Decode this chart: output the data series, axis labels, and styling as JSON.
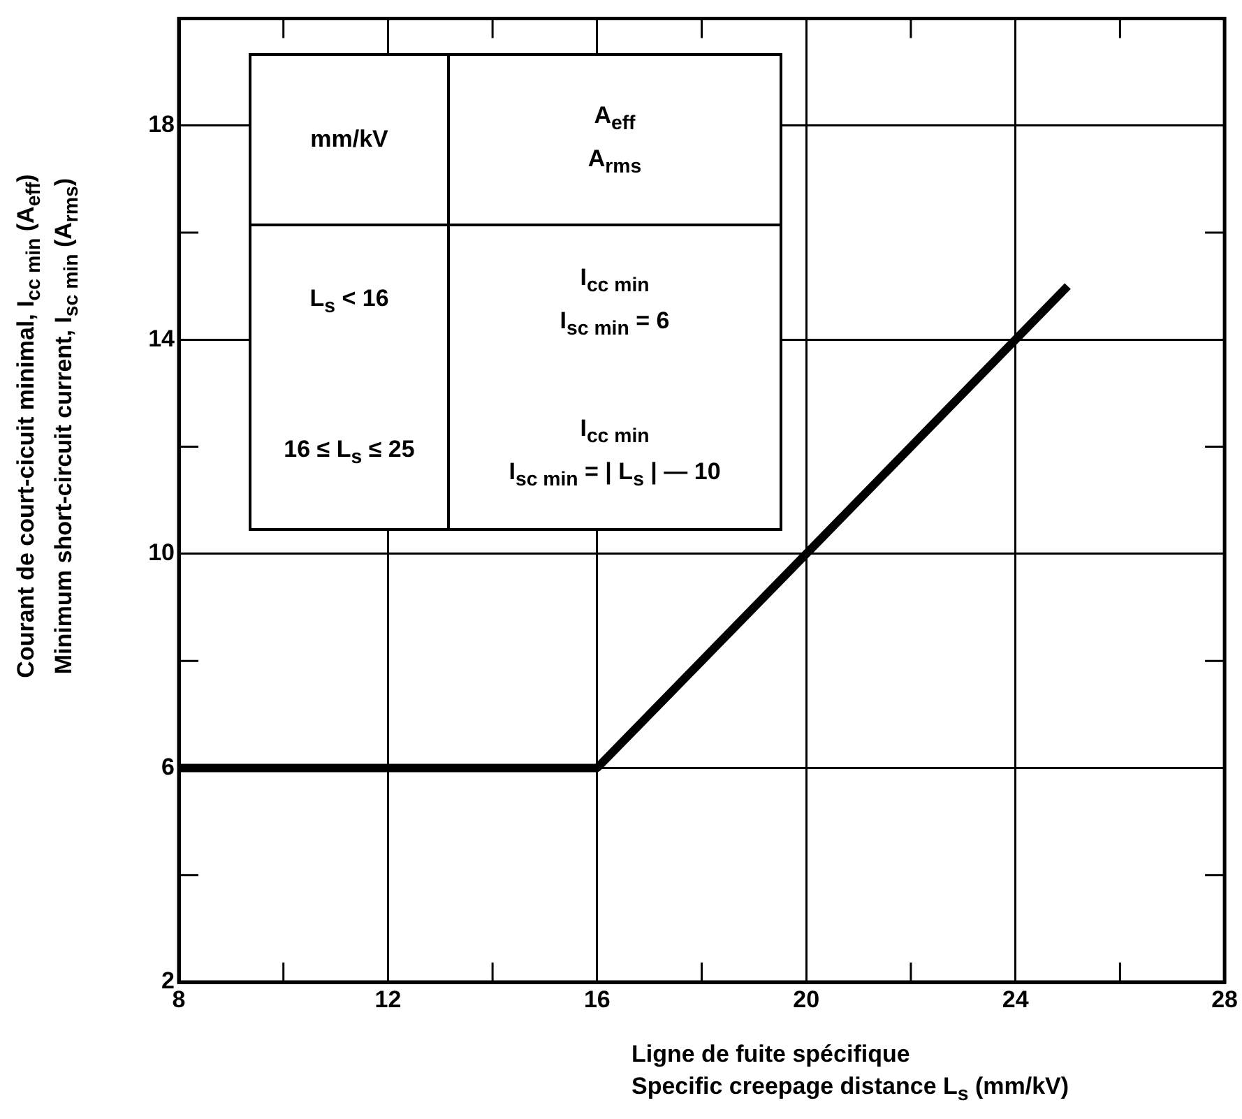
{
  "chart_data": {
    "type": "line",
    "xlabel": "Ligne de fuite spécifique\nSpecific creepage distance  L$_{s}$ (mm/kV)",
    "ylabel": "Courant de court-cicuit minimal,  I$_{cc min}$ (A$_{eff}$)\nMinimum short-circuit current,  I$_{sc min}$ (A$_{rms}$)",
    "x": [
      8,
      16,
      25
    ],
    "series": [
      {
        "color": "#000000",
        "values": [
          6,
          6,
          15
        ]
      }
    ],
    "xlim": [
      8,
      28
    ],
    "xticks": [
      8,
      {
        "value": 10,
        "label": null
      },
      12,
      {
        "value": 14,
        "label": null
      },
      16,
      {
        "value": 18,
        "label": null
      },
      20,
      {
        "value": 22,
        "label": null
      },
      24,
      {
        "value": 26,
        "label": null
      },
      28
    ],
    "ylim": [
      2,
      20
    ],
    "yticks": [
      2,
      {
        "value": 4,
        "label": null
      },
      6,
      {
        "value": 8,
        "label": null
      },
      10,
      {
        "value": 12,
        "label": null
      },
      14,
      {
        "value": 16,
        "label": null
      },
      18,
      {
        "value": 20,
        "label": null
      }
    ],
    "grid": true,
    "legend": false,
    "marker": "none",
    "line_style": "solid",
    "annotations": [
      "mm/kV",
      "A$_{eff}$\nA$_{rms}$",
      "L$_{s}$ < 16",
      "I$_{cc min}$\nI$_{sc min}$  =  6",
      "16 ≤ L$_{s}$ ≤ 25",
      "I$_{cc min}$\nI$_{sc min}$  = | L$_{s}$ | — 10"
    ]
  }
}
